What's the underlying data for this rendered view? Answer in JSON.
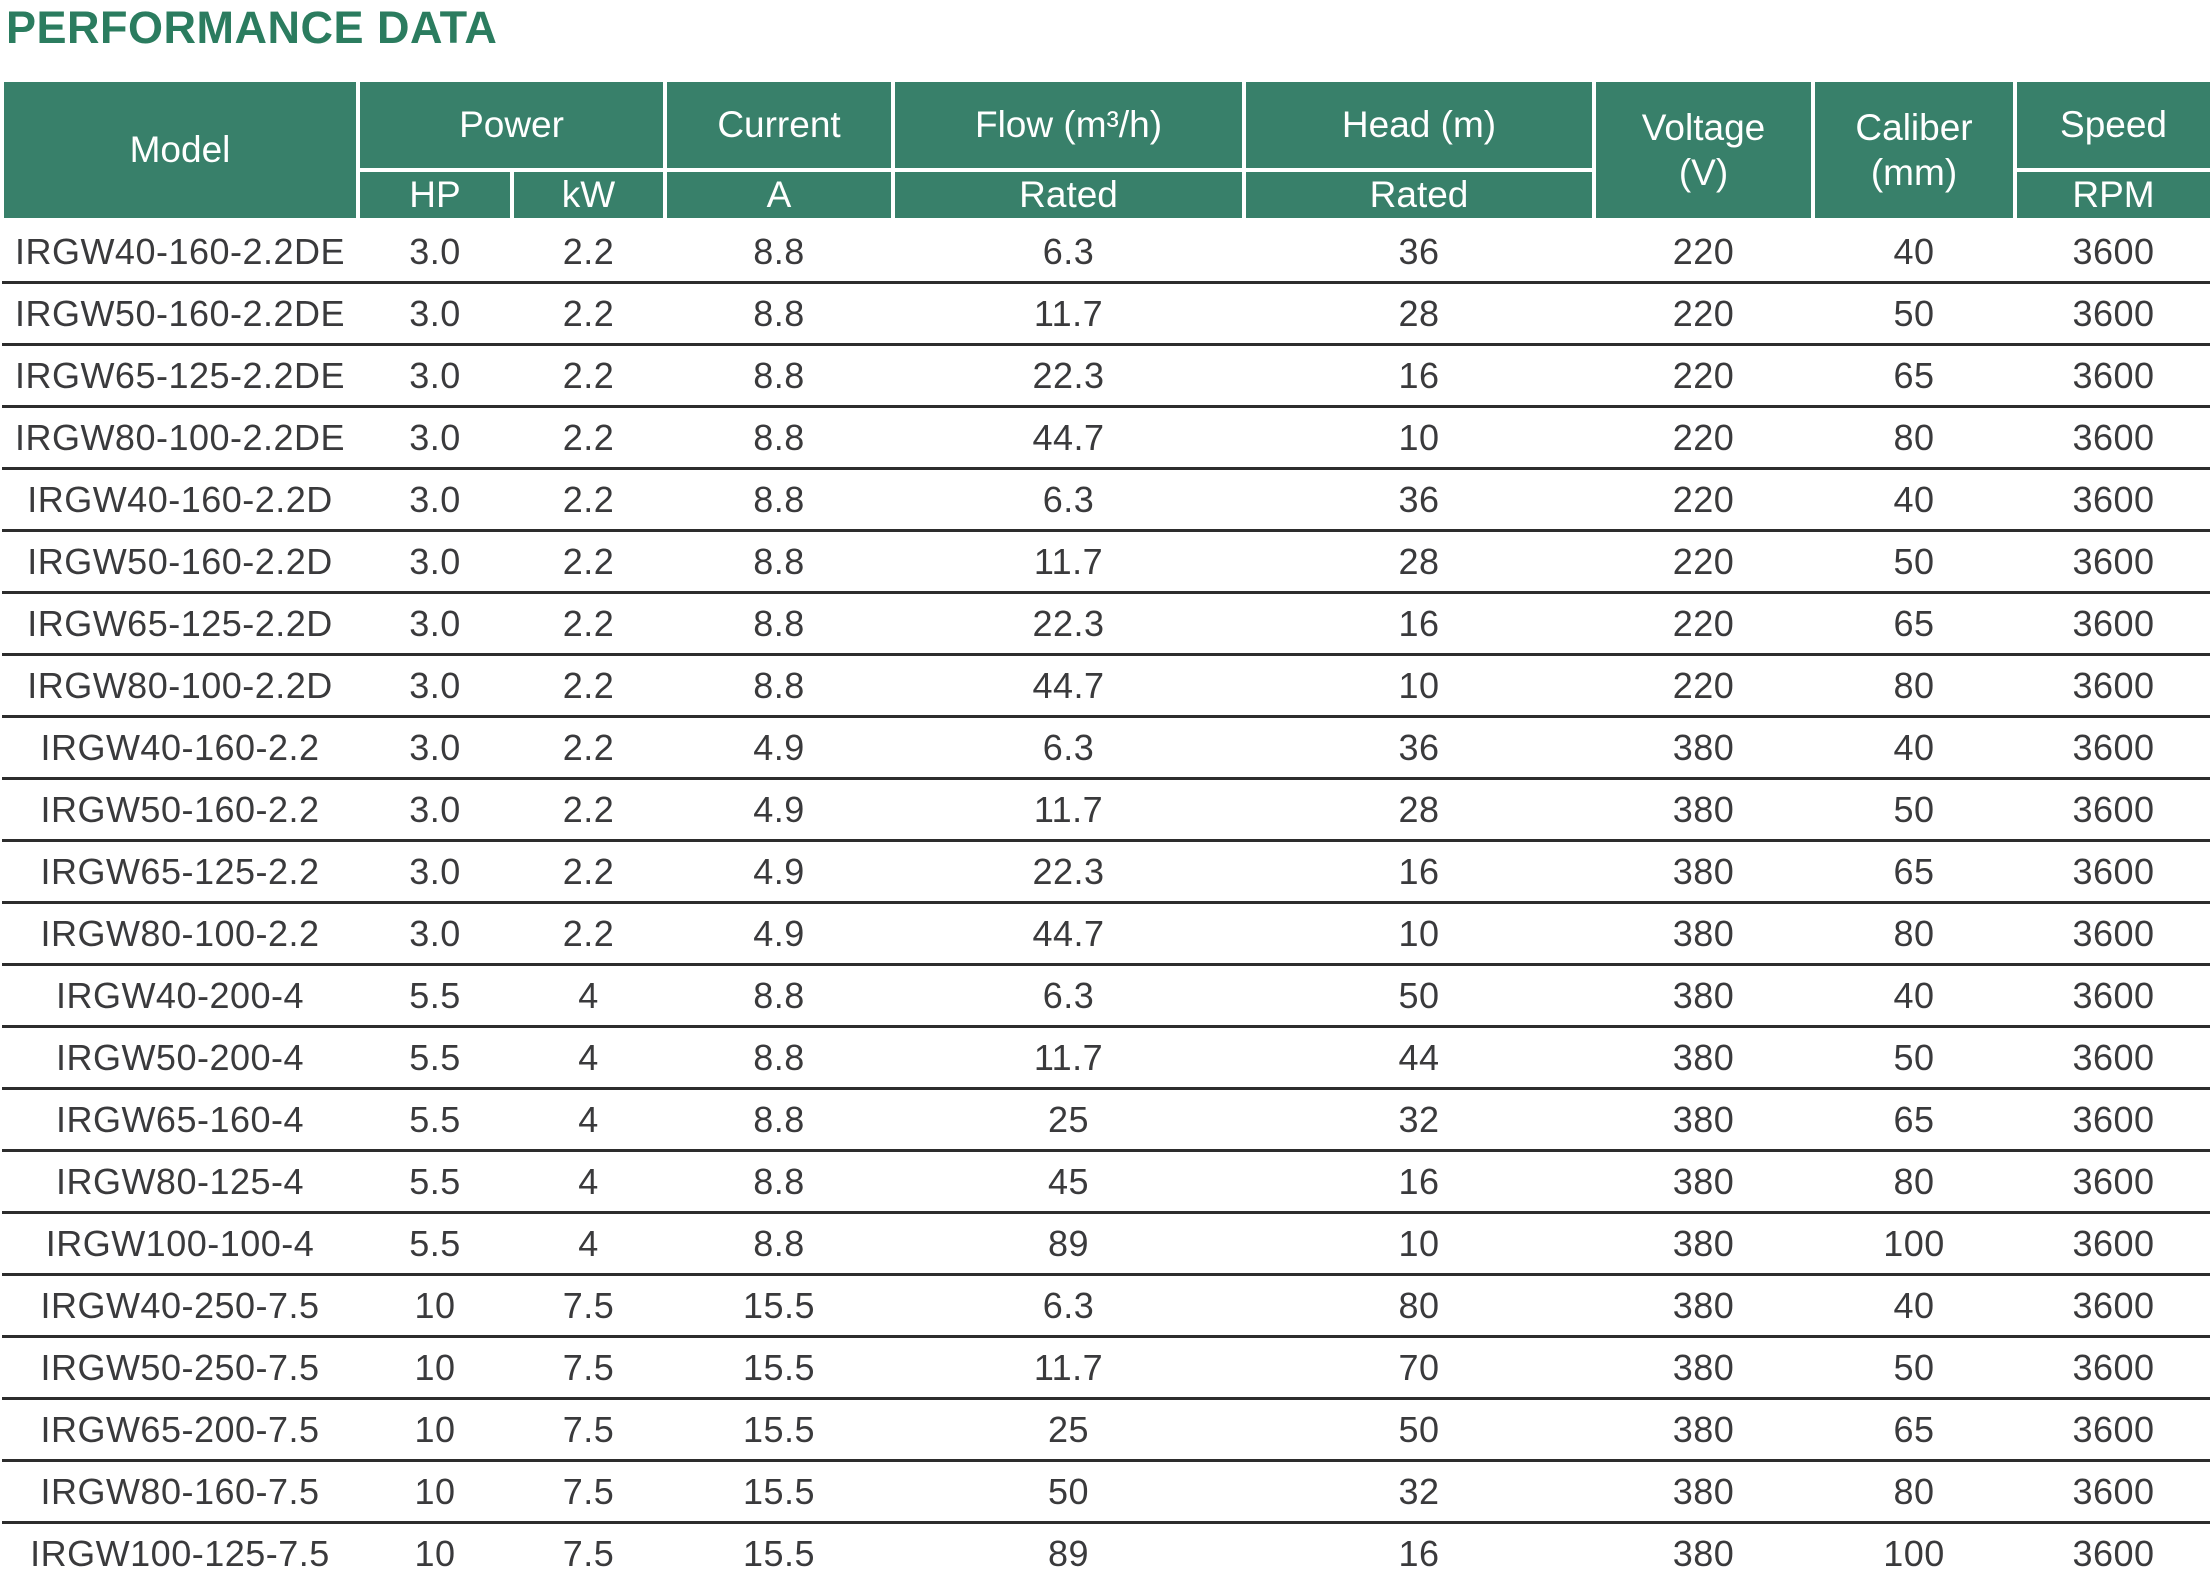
{
  "title": "PERFORMANCE DATA",
  "colors": {
    "title_green": "#2b7c5f",
    "header_green": "#38806a",
    "row_line": "#2d2d2d",
    "body_text": "#3a3a3c"
  },
  "table": {
    "headers": {
      "model": "Model",
      "power": "Power",
      "power_hp": "HP",
      "power_kw": "kW",
      "current": "Current",
      "current_a": "A",
      "flow": "Flow (m³/h)",
      "flow_rated": "Rated",
      "head": "Head (m)",
      "head_rated": "Rated",
      "voltage": "Voltage\n(V)",
      "caliber": "Caliber\n(mm)",
      "speed": "Speed",
      "speed_rpm": "RPM"
    },
    "rows": [
      [
        "IRGW40-160-2.2DE",
        "3.0",
        "2.2",
        "8.8",
        "6.3",
        "36",
        "220",
        "40",
        "3600"
      ],
      [
        "IRGW50-160-2.2DE",
        "3.0",
        "2.2",
        "8.8",
        "11.7",
        "28",
        "220",
        "50",
        "3600"
      ],
      [
        "IRGW65-125-2.2DE",
        "3.0",
        "2.2",
        "8.8",
        "22.3",
        "16",
        "220",
        "65",
        "3600"
      ],
      [
        "IRGW80-100-2.2DE",
        "3.0",
        "2.2",
        "8.8",
        "44.7",
        "10",
        "220",
        "80",
        "3600"
      ],
      [
        "IRGW40-160-2.2D",
        "3.0",
        "2.2",
        "8.8",
        "6.3",
        "36",
        "220",
        "40",
        "3600"
      ],
      [
        "IRGW50-160-2.2D",
        "3.0",
        "2.2",
        "8.8",
        "11.7",
        "28",
        "220",
        "50",
        "3600"
      ],
      [
        "IRGW65-125-2.2D",
        "3.0",
        "2.2",
        "8.8",
        "22.3",
        "16",
        "220",
        "65",
        "3600"
      ],
      [
        "IRGW80-100-2.2D",
        "3.0",
        "2.2",
        "8.8",
        "44.7",
        "10",
        "220",
        "80",
        "3600"
      ],
      [
        "IRGW40-160-2.2",
        "3.0",
        "2.2",
        "4.9",
        "6.3",
        "36",
        "380",
        "40",
        "3600"
      ],
      [
        "IRGW50-160-2.2",
        "3.0",
        "2.2",
        "4.9",
        "11.7",
        "28",
        "380",
        "50",
        "3600"
      ],
      [
        "IRGW65-125-2.2",
        "3.0",
        "2.2",
        "4.9",
        "22.3",
        "16",
        "380",
        "65",
        "3600"
      ],
      [
        "IRGW80-100-2.2",
        "3.0",
        "2.2",
        "4.9",
        "44.7",
        "10",
        "380",
        "80",
        "3600"
      ],
      [
        "IRGW40-200-4",
        "5.5",
        "4",
        "8.8",
        "6.3",
        "50",
        "380",
        "40",
        "3600"
      ],
      [
        "IRGW50-200-4",
        "5.5",
        "4",
        "8.8",
        "11.7",
        "44",
        "380",
        "50",
        "3600"
      ],
      [
        "IRGW65-160-4",
        "5.5",
        "4",
        "8.8",
        "25",
        "32",
        "380",
        "65",
        "3600"
      ],
      [
        "IRGW80-125-4",
        "5.5",
        "4",
        "8.8",
        "45",
        "16",
        "380",
        "80",
        "3600"
      ],
      [
        "IRGW100-100-4",
        "5.5",
        "4",
        "8.8",
        "89",
        "10",
        "380",
        "100",
        "3600"
      ],
      [
        "IRGW40-250-7.5",
        "10",
        "7.5",
        "15.5",
        "6.3",
        "80",
        "380",
        "40",
        "3600"
      ],
      [
        "IRGW50-250-7.5",
        "10",
        "7.5",
        "15.5",
        "11.7",
        "70",
        "380",
        "50",
        "3600"
      ],
      [
        "IRGW65-200-7.5",
        "10",
        "7.5",
        "15.5",
        "25",
        "50",
        "380",
        "65",
        "3600"
      ],
      [
        "IRGW80-160-7.5",
        "10",
        "7.5",
        "15.5",
        "50",
        "32",
        "380",
        "80",
        "3600"
      ],
      [
        "IRGW100-125-7.5",
        "10",
        "7.5",
        "15.5",
        "89",
        "16",
        "380",
        "100",
        "3600"
      ]
    ]
  }
}
